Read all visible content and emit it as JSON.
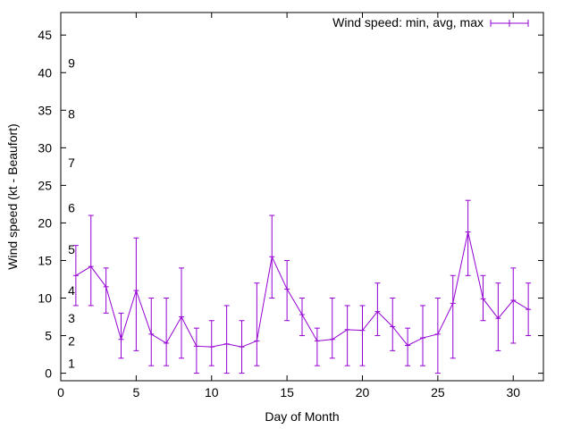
{
  "chart_data": {
    "type": "line",
    "title": "",
    "xlabel": "Day of Month",
    "ylabel": "Wind speed (kt - Beaufort)",
    "xlim": [
      0,
      32
    ],
    "ylim": [
      -1,
      48
    ],
    "x_ticks": [
      0,
      5,
      10,
      15,
      20,
      25,
      30
    ],
    "y_ticks": [
      0,
      5,
      10,
      15,
      20,
      25,
      30,
      35,
      40,
      45
    ],
    "grid": false,
    "legend_position": "top-right",
    "series": [
      {
        "name": "Wind speed: min, avg, max",
        "color": "#9400d3",
        "x": [
          1,
          2,
          3,
          4,
          5,
          6,
          7,
          8,
          9,
          10,
          11,
          12,
          13,
          14,
          15,
          16,
          17,
          18,
          19,
          20,
          21,
          22,
          23,
          24,
          25,
          26,
          27,
          28,
          29,
          30,
          31
        ],
        "avg": [
          13.0,
          14.2,
          11.5,
          4.5,
          11.0,
          5.2,
          4.0,
          7.5,
          3.6,
          3.5,
          3.9,
          3.5,
          4.3,
          15.5,
          11.2,
          7.8,
          4.3,
          4.5,
          5.8,
          5.7,
          8.2,
          6.2,
          3.7,
          4.7,
          5.2,
          9.3,
          18.8,
          9.9,
          7.3,
          9.7,
          8.5
        ],
        "min": [
          9,
          9,
          8,
          2,
          3,
          1,
          1,
          2,
          0,
          1,
          0,
          0,
          1,
          10,
          7,
          5,
          1,
          2,
          1,
          1,
          5,
          3,
          1,
          1,
          0,
          2,
          13,
          7,
          3,
          4,
          5
        ],
        "max": [
          17,
          21,
          14,
          8,
          18,
          10,
          10,
          14,
          6,
          7,
          9,
          7,
          12,
          21,
          15,
          10,
          6,
          10,
          9,
          9,
          12,
          10,
          6,
          9,
          10,
          13,
          23,
          13,
          12,
          14,
          12
        ]
      }
    ],
    "annotations": [
      {
        "text": "1",
        "y": 1.3
      },
      {
        "text": "2",
        "y": 4.3
      },
      {
        "text": "3",
        "y": 7.3
      },
      {
        "text": "4",
        "y": 11.0
      },
      {
        "text": "5",
        "y": 16.5
      },
      {
        "text": "6",
        "y": 22.0
      },
      {
        "text": "7",
        "y": 28.0
      },
      {
        "text": "8",
        "y": 34.5
      },
      {
        "text": "9",
        "y": 41.3
      }
    ]
  }
}
